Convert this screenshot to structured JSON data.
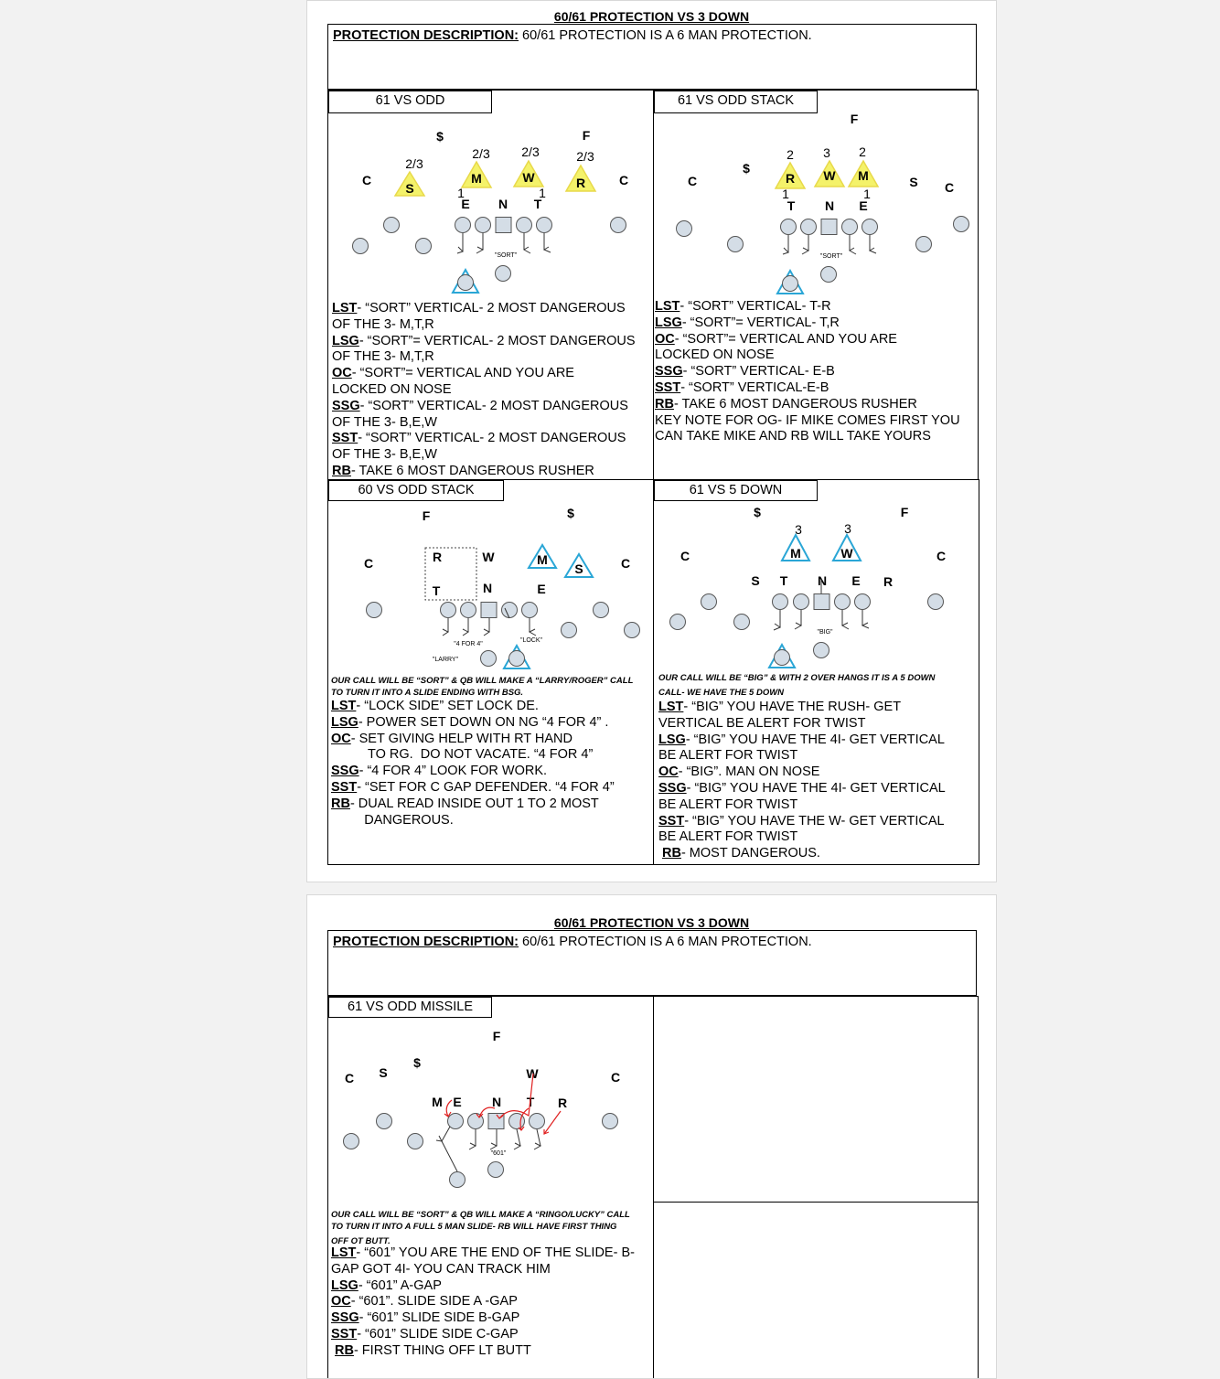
{
  "page1": {
    "title": "60/61 PROTECTION VS 3 DOWN",
    "description_label": "PROTECTION DESCRIPTION:",
    "description_text": " 60/61 PROTECTION IS A 6 MAN PROTECTION.",
    "cells": {
      "c1": {
        "title": "61 VS ODD",
        "diagram": {
          "symbols": [
            "$",
            "F",
            "C",
            "C",
            "2/3",
            "2/3",
            "2/3",
            "2/3",
            "S",
            "M",
            "W",
            "R",
            "1",
            "1",
            "E",
            "N",
            "T"
          ],
          "call": "\"SORT\""
        },
        "notes": [
          {
            "tag": "LST",
            "text": "- “SORT” VERTICAL- 2 MOST DANGEROUS"
          },
          {
            "tag": "",
            "text": "OF THE 3- M,T,R"
          },
          {
            "tag": "LSG",
            "text": "- “SORT”= VERTICAL- 2 MOST DANGEROUS"
          },
          {
            "tag": "",
            "text": "OF THE 3- M,T,R"
          },
          {
            "tag": "OC",
            "text": "-    “SORT”= VERTICAL AND YOU ARE"
          },
          {
            "tag": "",
            "text": "LOCKED ON NOSE"
          },
          {
            "tag": "SSG",
            "text": "- “SORT”  VERTICAL- 2 MOST DANGEROUS"
          },
          {
            "tag": "",
            "text": "OF THE 3- B,E,W"
          },
          {
            "tag": "SST",
            "text": "- “SORT” VERTICAL- 2 MOST DANGEROUS"
          },
          {
            "tag": "",
            "text": "OF THE 3-  B,E,W"
          },
          {
            "tag": "RB",
            "text": "-   TAKE 6 MOST DANGEROUS RUSHER"
          }
        ]
      },
      "c2": {
        "title": "61 VS ODD STACK",
        "diagram": {
          "symbols": [
            "F",
            "$",
            "C",
            "C",
            "S",
            "2",
            "3",
            "2",
            "R",
            "W",
            "M",
            "1",
            "1",
            "T",
            "N",
            "E"
          ],
          "call": "\"SORT\""
        },
        "notes": [
          {
            "tag": "LST",
            "text": "-  “SORT” VERTICAL- T-R"
          },
          {
            "tag": "LSG",
            "text": "-  “SORT”= VERTICAL- T,R"
          },
          {
            "tag": "OC",
            "text": "-    “SORT”= VERTICAL AND YOU ARE"
          },
          {
            "tag": "",
            "text": "LOCKED ON NOSE"
          },
          {
            "tag": "SSG",
            "text": "- “SORT”  VERTICAL- E-B"
          },
          {
            "tag": "SST",
            "text": "- “SORT” VERTICAL-E-B"
          },
          {
            "tag": "RB",
            "text": "-   TAKE 6 MOST DANGEROUS RUSHER"
          },
          {
            "tag": "",
            "text": "KEY NOTE FOR OG- IF MIKE COMES FIRST YOU"
          },
          {
            "tag": "",
            "text": "CAN TAKE MIKE AND RB WILL TAKE YOURS"
          }
        ]
      },
      "c3": {
        "title": "60 VS ODD STACK",
        "diagram": {
          "symbols": [
            "F",
            "$",
            "C",
            "C",
            "R",
            "W",
            "M",
            "S",
            "T",
            "N",
            "E"
          ],
          "calls": [
            "\"4 FOR 4\"",
            "\"LOCK\"",
            "\"LARRY\""
          ]
        },
        "call_note": [
          "OUR CALL WILL BE “SORT” & QB WILL MAKE A “LARRY/ROGER” CALL",
          "TO TURN IT INTO A SLIDE ENDING WITH BSG."
        ],
        "notes": [
          {
            "tag": "LST",
            "text": "-  “LOCK SIDE” SET LOCK DE."
          },
          {
            "tag": "LSG",
            "text": "-  POWER SET DOWN ON NG “4 FOR 4” ."
          },
          {
            "tag": "OC",
            "text": "-    SET GIVING HELP WITH RT HAND"
          },
          {
            "tag": "",
            "text": "          TO RG.  DO NOT VACATE. “4 FOR 4”"
          },
          {
            "tag": "SSG",
            "text": "- “4 FOR 4” LOOK FOR WORK."
          },
          {
            "tag": "SST",
            "text": "- “SET FOR C GAP DEFENDER. “4 FOR 4”"
          },
          {
            "tag": "RB",
            "text": "-   DUAL READ INSIDE OUT 1 TO 2 MOST"
          },
          {
            "tag": "",
            "text": "         DANGEROUS."
          }
        ]
      },
      "c4": {
        "title": "61 VS 5 DOWN",
        "diagram": {
          "symbols": [
            "$",
            "F",
            "C",
            "C",
            "3",
            "3",
            "M",
            "W",
            "S",
            "T",
            "N",
            "E",
            "R"
          ],
          "call": "\"BIG\""
        },
        "call_note": [
          "OUR CALL WILL BE “BIG” & WITH 2 OVER HANGS IT IS A 5 DOWN",
          "CALL- WE HAVE THE 5 DOWN"
        ],
        "notes": [
          {
            "tag": "LST",
            "text": "-  “BIG” YOU HAVE THE RUSH- GET"
          },
          {
            "tag": "",
            "text": "VERTICAL BE ALERT FOR TWIST"
          },
          {
            "tag": "LSG",
            "text": "- “BIG” YOU HAVE THE 4I- GET VERTICAL"
          },
          {
            "tag": "",
            "text": "BE ALERT FOR TWIST"
          },
          {
            "tag": "OC",
            "text": "-    “BIG”. MAN ON NOSE"
          },
          {
            "tag": "SSG",
            "text": "- “BIG” YOU HAVE THE 4I- GET VERTICAL"
          },
          {
            "tag": "",
            "text": "BE ALERT FOR TWIST"
          },
          {
            "tag": "SST",
            "text": "-  “BIG” YOU HAVE THE W- GET VERTICAL"
          },
          {
            "tag": "",
            "text": "BE ALERT FOR TWIST"
          },
          {
            "tag": "RB",
            "text": "-   MOST DANGEROUS.",
            "indent": true
          }
        ]
      }
    }
  },
  "page2": {
    "title": "60/61 PROTECTION VS 3 DOWN",
    "description_label": "PROTECTION DESCRIPTION:",
    "description_text": " 60/61 PROTECTION IS A 6 MAN PROTECTION.",
    "cell": {
      "title": "61 VS ODD MISSILE",
      "diagram": {
        "symbols": [
          "F",
          "$",
          "C",
          "S",
          "W",
          "C",
          "M",
          "E",
          "N",
          "T",
          "R"
        ],
        "call": "\"601\""
      },
      "call_note": [
        "OUR CALL WILL BE “SORT” & QB WILL MAKE A “RINGO/LUCKY” CALL",
        "TO TURN IT INTO A FULL 5 MAN SLIDE- RB WILL HAVE FIRST THING",
        "OFF OT BUTT."
      ],
      "notes": [
        {
          "tag": "LST",
          "text": "-  “601” YOU ARE THE END OF THE SLIDE- B-"
        },
        {
          "tag": "",
          "text": "GAP GOT 4I- YOU CAN TRACK HIM"
        },
        {
          "tag": "LSG",
          "text": "- “601” A-GAP"
        },
        {
          "tag": "OC",
          "text": "-    “601”. SLIDE SIDE A -GAP"
        },
        {
          "tag": "SSG",
          "text": "- “601” SLIDE SIDE B-GAP"
        },
        {
          "tag": "SST",
          "text": "- “601” SLIDE SIDE C-GAP"
        },
        {
          "tag": "RB",
          "text": "-   FIRST THING OFF LT BUTT",
          "indent": true
        }
      ]
    }
  },
  "colors": {
    "yellow_triangle": "#f4f26a",
    "blue_triangle": "#2aa6d6",
    "lineman_fill": "#d4dde6",
    "route_red": "#e02020"
  }
}
